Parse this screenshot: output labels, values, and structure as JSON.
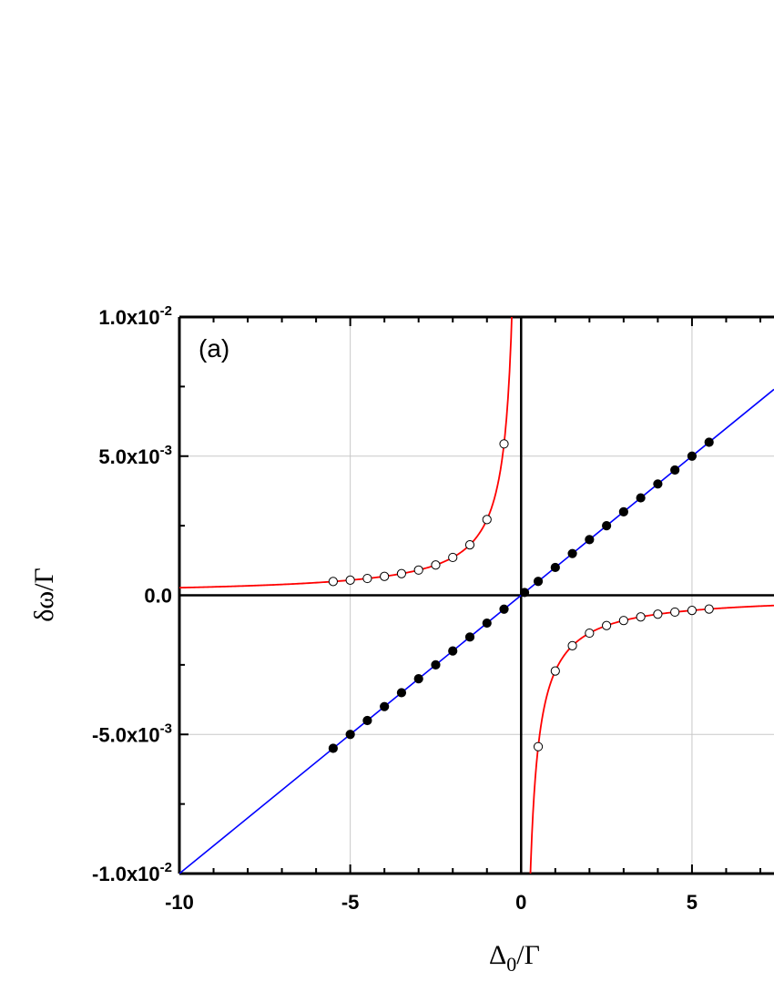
{
  "chart_data": {
    "type": "scatter",
    "panel_label": "(a)",
    "xlabel": {
      "main": "Δ",
      "sub": "0",
      "rest": "/Γ"
    },
    "ylabel": "δω/Γ",
    "xlim": [
      -10,
      7.4
    ],
    "ylim": [
      -0.01,
      0.01
    ],
    "x_ticks": [
      {
        "value": -10,
        "label": "-10"
      },
      {
        "value": -5,
        "label": "-5"
      },
      {
        "value": 0,
        "label": "0"
      },
      {
        "value": 5,
        "label": "5"
      }
    ],
    "y_ticks": [
      {
        "value": 0.01,
        "mant": "1.0x10",
        "exp": "-2"
      },
      {
        "value": 0.005,
        "mant": "5.0x10",
        "exp": "-3"
      },
      {
        "value": 0,
        "mant": "0.0",
        "exp": ""
      },
      {
        "value": -0.005,
        "mant": "-5.0x10",
        "exp": "-3"
      },
      {
        "value": -0.01,
        "mant": "-1.0x10",
        "exp": "-2"
      }
    ],
    "grid": true,
    "colors": {
      "linear": "#0000ff",
      "hyperbola": "#ff0000",
      "axes": "#000000",
      "grid": "#c8c8c8"
    },
    "series": [
      {
        "style": "line",
        "color": "#0000ff",
        "formula": "y = 0.001 * x"
      },
      {
        "style": "line",
        "color": "#ff0000",
        "formula": "y = -0.00272 / x"
      },
      {
        "style": "filled-markers",
        "x": [
          -5.5,
          -5,
          -4.5,
          -4,
          -3.5,
          -3,
          -2.5,
          -2,
          -1.5,
          -1,
          -0.5,
          0.1,
          0.5,
          1,
          1.5,
          2,
          2.5,
          3,
          3.5,
          4,
          4.5,
          5,
          5.5
        ],
        "y": [
          -0.0055,
          -0.005,
          -0.0045,
          -0.004,
          -0.0035,
          -0.003,
          -0.0025,
          -0.002,
          -0.0015,
          -0.001,
          -0.0005,
          0.0001,
          0.0005,
          0.001,
          0.0015,
          0.002,
          0.0025,
          0.003,
          0.0035,
          0.004,
          0.0045,
          0.005,
          0.0055
        ]
      },
      {
        "style": "open-markers",
        "x": [
          -5.5,
          -5,
          -4.5,
          -4,
          -3.5,
          -3,
          -2.5,
          -2,
          -1.5,
          -1,
          -0.5,
          0.5,
          1,
          1.5,
          2,
          2.5,
          3,
          3.5,
          4,
          4.5,
          5,
          5.5
        ],
        "y": [
          0.000495,
          0.000544,
          0.000604,
          0.00068,
          0.000777,
          0.000907,
          0.001088,
          0.00136,
          0.001813,
          0.00272,
          0.00544,
          -0.00544,
          -0.00272,
          -0.001813,
          -0.00136,
          -0.001088,
          -0.000907,
          -0.000777,
          -0.00068,
          -0.000604,
          -0.000544,
          -0.000495
        ]
      }
    ]
  }
}
